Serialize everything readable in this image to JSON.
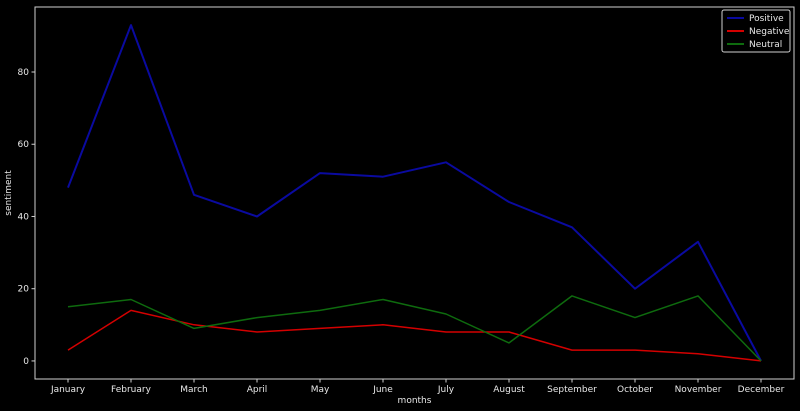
{
  "chart_data": {
    "type": "line",
    "xlabel": "months",
    "ylabel": "sentiment",
    "categories": [
      "January",
      "February",
      "March",
      "April",
      "May",
      "June",
      "July",
      "August",
      "September",
      "October",
      "November",
      "December"
    ],
    "yticks": [
      0,
      20,
      40,
      60,
      80
    ],
    "ylim": [
      -5,
      98
    ],
    "grid": false,
    "legend_position": "top-right",
    "series": [
      {
        "name": "Positive",
        "color": "#0a0aa0",
        "values": [
          48,
          93,
          46,
          40,
          52,
          51,
          55,
          44,
          37,
          20,
          33,
          0
        ]
      },
      {
        "name": "Negative",
        "color": "#d40000",
        "values": [
          3,
          14,
          10,
          8,
          9,
          10,
          8,
          8,
          3,
          3,
          2,
          0
        ]
      },
      {
        "name": "Neutral",
        "color": "#0e6b0e",
        "values": [
          15,
          17,
          9,
          12,
          14,
          17,
          13,
          5,
          18,
          12,
          18,
          0
        ]
      }
    ]
  }
}
